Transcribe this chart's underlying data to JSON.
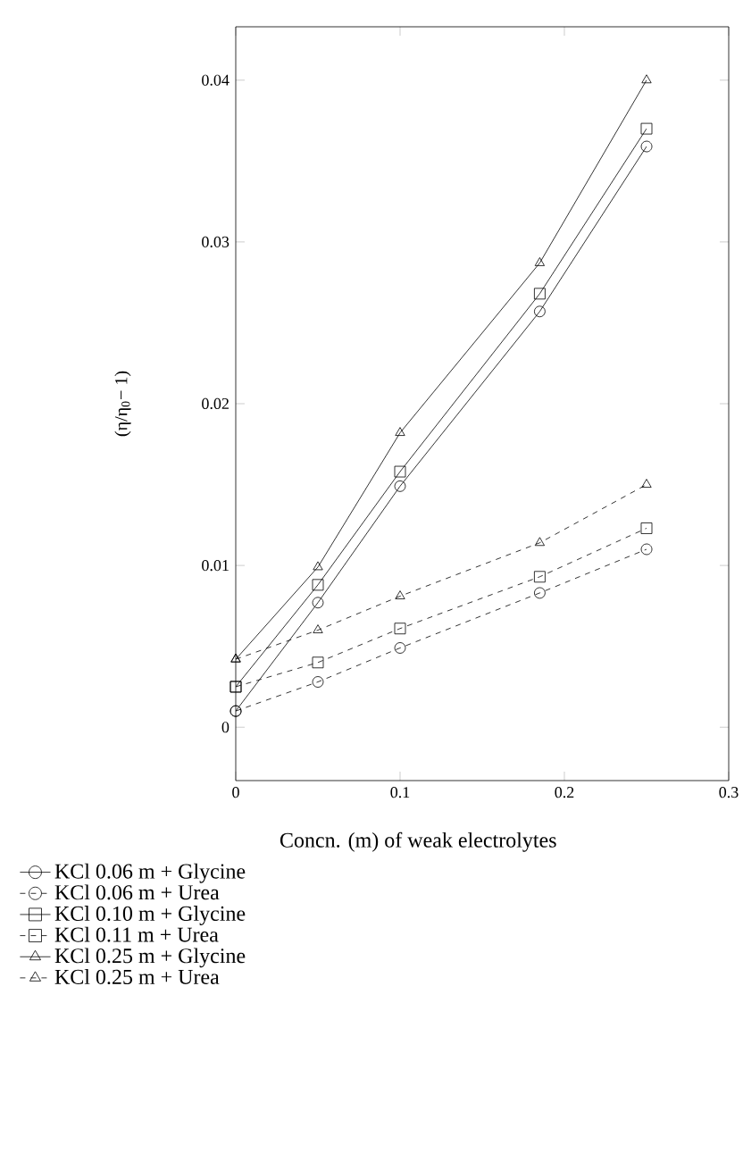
{
  "chart_data": {
    "type": "line",
    "xlabel": "Concn. (m) of weak electrolytes",
    "ylabel": "(η/η$_{0}$− 1)",
    "x": [
      0,
      0.05,
      0.1,
      0.185,
      0.25
    ],
    "xlim": [
      0,
      0.3
    ],
    "ylim": [
      -0.0033,
      0.0433
    ],
    "xticks": [
      0,
      0.1,
      0.2,
      0.3
    ],
    "yticks": [
      0,
      0.01,
      0.02,
      0.03,
      0.04
    ],
    "grid": false,
    "legend": "bottom",
    "series": [
      {
        "name": "KCl 0.06 m + Glycine",
        "color": "#000000",
        "marker": "circle",
        "line_style": "solid",
        "values": [
          0.001,
          0.0077,
          0.0149,
          0.0257,
          0.0359
        ]
      },
      {
        "name": "KCl 0.06 m + Urea",
        "color": "#000000",
        "marker": "circle",
        "line_style": "dashed",
        "values": [
          0.001,
          0.0028,
          0.0049,
          0.0083,
          0.011
        ]
      },
      {
        "name": "KCl 0.10 m + Glycine",
        "color": "#000000",
        "marker": "square",
        "line_style": "solid",
        "values": [
          0.0025,
          0.0088,
          0.0158,
          0.0268,
          0.037
        ]
      },
      {
        "name": "KCl 0.11 m + Urea",
        "color": "#000000",
        "marker": "square",
        "line_style": "dashed",
        "values": [
          0.0025,
          0.004,
          0.0061,
          0.0093,
          0.0123
        ]
      },
      {
        "name": "KCl 0.25 m + Glycine",
        "color": "#000000",
        "marker": "triangle",
        "line_style": "solid",
        "values": [
          0.0042,
          0.0099,
          0.0182,
          0.0287,
          0.04
        ]
      },
      {
        "name": "KCl 0.25 m + Urea",
        "color": "#000000",
        "marker": "triangle",
        "line_style": "dashed",
        "values": [
          0.0042,
          0.006,
          0.0081,
          0.0114,
          0.015
        ]
      }
    ]
  }
}
